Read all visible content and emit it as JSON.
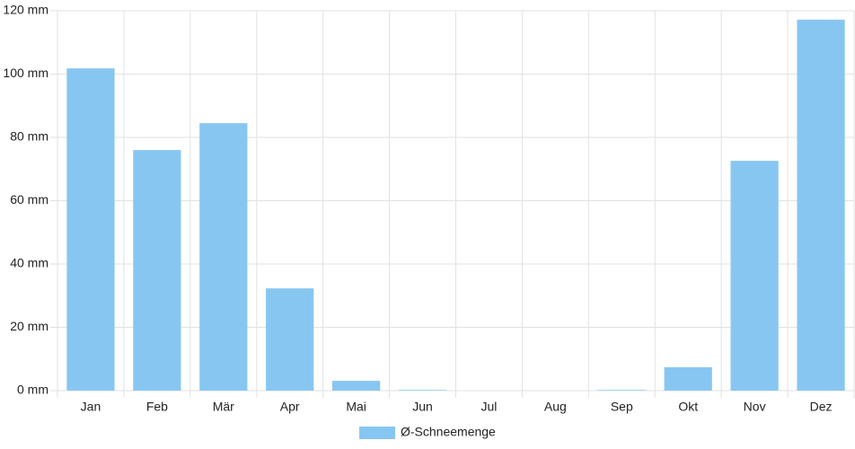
{
  "chart_data": {
    "type": "bar",
    "categories": [
      "Jan",
      "Feb",
      "Mär",
      "Apr",
      "Mai",
      "Jun",
      "Jul",
      "Aug",
      "Sep",
      "Okt",
      "Nov",
      "Dez"
    ],
    "series": [
      {
        "name": "Ø-Schneemenge",
        "color": "#88c6f2",
        "values": [
          101.8,
          76,
          84.5,
          32.3,
          3.1,
          0.2,
          0,
          0,
          0.2,
          7.4,
          72.6,
          117.2
        ]
      }
    ],
    "ylim": [
      0,
      120
    ],
    "yticks": [
      {
        "value": 0,
        "label": "0 mm"
      },
      {
        "value": 20,
        "label": "20 mm"
      },
      {
        "value": 40,
        "label": "40 mm"
      },
      {
        "value": 60,
        "label": "60 mm"
      },
      {
        "value": 80,
        "label": "80 mm"
      },
      {
        "value": 100,
        "label": "100 mm"
      },
      {
        "value": 120,
        "label": "120 mm"
      }
    ],
    "grid": true,
    "legend": "bottom"
  }
}
